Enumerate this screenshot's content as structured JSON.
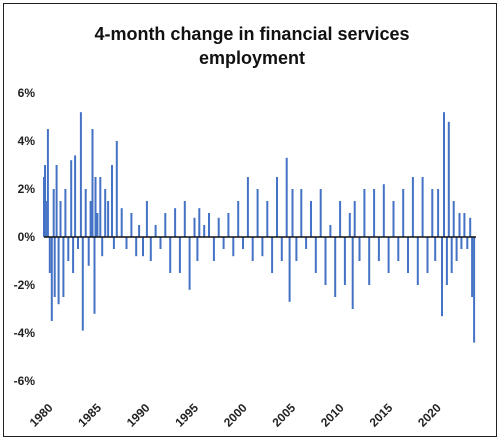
{
  "chart_data": {
    "type": "bar",
    "title_lines": [
      "4-month change in financial services",
      "employment"
    ],
    "xlabel": "",
    "ylabel": "",
    "xlim": [
      1980,
      2024.5
    ],
    "ylim": [
      -6,
      6
    ],
    "y_ticks": [
      "6%",
      "4%",
      "2%",
      "0%",
      "-2%",
      "-4%",
      "-6%"
    ],
    "x_ticks": [
      "1980",
      "1985",
      "1990",
      "1995",
      "2000",
      "2005",
      "2010",
      "2015",
      "2020"
    ],
    "bar_color": "#4472C4",
    "grid": false,
    "legend": "none",
    "series": [
      {
        "x": [
          1980.0,
          1980.1,
          1980.2,
          1980.4,
          1980.6,
          1980.8,
          1981.0,
          1981.1,
          1981.3,
          1981.5,
          1981.7,
          1982.0,
          1982.2,
          1982.5,
          1982.8,
          1983.0,
          1983.2,
          1983.5,
          1983.8,
          1984.0,
          1984.3,
          1984.6,
          1984.8,
          1985.0,
          1985.2,
          1985.3,
          1985.5,
          1985.8,
          1986.0,
          1986.3,
          1986.6,
          1987.0,
          1987.2,
          1987.5,
          1988.0,
          1988.5,
          1989.0,
          1989.5,
          1989.8,
          1990.2,
          1990.6,
          1991.0,
          1991.5,
          1992.0,
          1992.5,
          1993.0,
          1993.5,
          1994.0,
          1994.5,
          1995.0,
          1995.5,
          1995.8,
          1996.0,
          1996.5,
          1997.0,
          1997.5,
          1998.0,
          1998.5,
          1999.0,
          1999.5,
          2000.0,
          2000.5,
          2001.0,
          2001.5,
          2002.0,
          2002.5,
          2003.0,
          2003.5,
          2004.0,
          2004.5,
          2005.0,
          2005.3,
          2005.6,
          2006.0,
          2006.5,
          2007.0,
          2007.5,
          2008.0,
          2008.5,
          2009.0,
          2009.5,
          2010.0,
          2010.5,
          2011.0,
          2011.5,
          2011.8,
          2012.0,
          2012.5,
          2013.0,
          2013.5,
          2014.0,
          2014.5,
          2015.0,
          2015.5,
          2016.0,
          2016.5,
          2017.0,
          2017.5,
          2018.0,
          2018.5,
          2019.0,
          2019.5,
          2020.0,
          2020.3,
          2020.6,
          2021.0,
          2021.2,
          2021.5,
          2021.7,
          2022.0,
          2022.2,
          2022.5,
          2022.8,
          2023.0,
          2023.3,
          2023.6,
          2023.9,
          2024.1,
          2024.3
        ],
        "values": [
          2.5,
          3.0,
          1.5,
          4.5,
          -1.5,
          -3.5,
          2.0,
          -2.5,
          3.0,
          -2.8,
          1.5,
          -2.5,
          2.0,
          -1.0,
          3.2,
          -1.5,
          3.4,
          -0.5,
          5.2,
          -3.9,
          2.0,
          -1.2,
          1.5,
          4.5,
          -3.2,
          2.5,
          1.0,
          2.5,
          -0.8,
          2.0,
          1.5,
          3.0,
          -0.5,
          4.0,
          1.2,
          -0.5,
          1.0,
          -0.8,
          0.5,
          -0.8,
          1.5,
          -1.0,
          0.5,
          -0.5,
          1.0,
          -1.5,
          1.2,
          -1.5,
          1.5,
          -2.2,
          0.8,
          -1.0,
          1.2,
          0.5,
          1.0,
          -1.0,
          0.8,
          -0.5,
          1.0,
          -0.8,
          1.5,
          -0.5,
          2.5,
          -1.0,
          2.0,
          -0.8,
          1.5,
          -1.5,
          2.5,
          -1.0,
          3.3,
          -2.7,
          2.0,
          -1.0,
          2.0,
          -0.5,
          1.5,
          -1.5,
          2.0,
          -2.0,
          0.5,
          -2.5,
          1.5,
          -2.0,
          1.0,
          -3.0,
          1.5,
          -1.0,
          2.0,
          -2.0,
          2.0,
          -1.0,
          2.2,
          -1.5,
          1.5,
          -1.0,
          2.0,
          -1.5,
          2.5,
          -2.0,
          2.5,
          -1.5,
          2.0,
          -1.0,
          2.0,
          -3.3,
          5.2,
          -2.0,
          4.8,
          -1.5,
          1.5,
          -1.0,
          1.0,
          -0.5,
          1.0,
          -0.5,
          0.8,
          -2.5,
          -4.4
        ]
      }
    ]
  }
}
